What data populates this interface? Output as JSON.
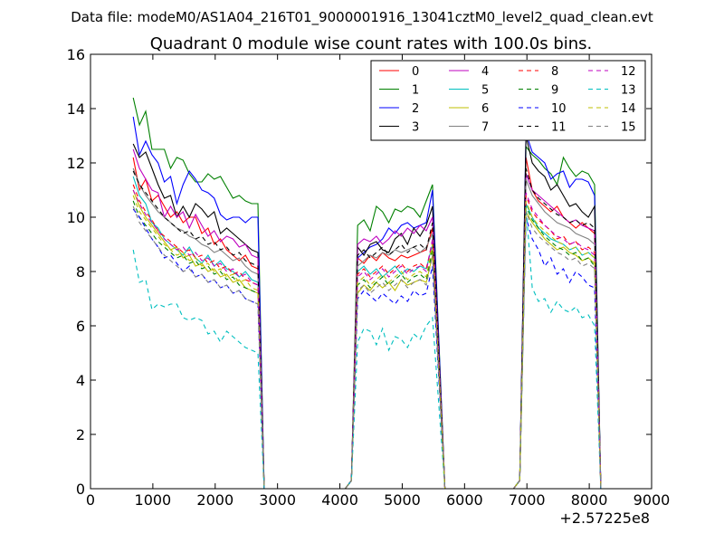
{
  "chart_data": {
    "type": "line",
    "suptitle": "Data file: modeM0/AS1A04_216T01_9000001916_13041cztM0_level2_quad_clean.evt",
    "title": "Quadrant 0 module wise count rates with 100.0s bins.",
    "xlabel": "",
    "ylabel": "",
    "xlim": [
      0,
      9000
    ],
    "ylim": [
      0,
      16
    ],
    "x_offset_label": "+2.57225e8",
    "xticks": [
      "0",
      "1000",
      "2000",
      "3000",
      "4000",
      "5000",
      "6000",
      "7000",
      "8000",
      "9000"
    ],
    "yticks": [
      "0",
      "2",
      "4",
      "6",
      "8",
      "10",
      "12",
      "14",
      "16"
    ],
    "legend_position": "upper-right",
    "legend_columns": 4,
    "segments": [
      {
        "start": 685,
        "step": 100,
        "count": 21,
        "rise_from": null,
        "fall_to": 2785
      },
      {
        "start": 4285,
        "step": 100,
        "count": 13,
        "rise_from": 4185,
        "fall_to": 5685
      },
      {
        "start": 6985,
        "step": 100,
        "count": 12,
        "rise_from": 6885,
        "fall_to": 8185
      }
    ],
    "gaps": [
      [
        2785,
        4085,
        0
      ],
      [
        5685,
        6785,
        0
      ]
    ],
    "series": [
      {
        "name": "0",
        "color": "#ff0000",
        "dash": false,
        "values": [
          [
            12.2,
            11.0,
            11.4,
            10.6,
            10.8,
            10.4,
            10.0,
            10.2,
            9.8,
            10.0,
            10.0,
            9.4,
            9.6,
            9.0,
            9.2,
            8.8,
            8.6,
            8.4,
            8.6,
            8.2,
            8.1
          ],
          [
            8.5,
            8.3,
            8.6,
            8.4,
            8.7,
            8.5,
            8.4,
            8.6,
            8.5,
            8.6,
            8.7,
            8.8,
            9.6
          ],
          [
            12.2,
            11.0,
            10.6,
            10.4,
            10.2,
            10.4,
            10.0,
            9.8,
            9.6,
            9.8,
            9.6,
            9.4
          ]
        ]
      },
      {
        "name": "1",
        "color": "#008000",
        "dash": false,
        "values": [
          [
            14.4,
            13.4,
            13.9,
            12.5,
            12.5,
            12.5,
            11.8,
            12.2,
            12.1,
            11.6,
            11.3,
            11.3,
            11.6,
            11.4,
            11.5,
            11.1,
            10.7,
            10.8,
            10.6,
            10.5,
            10.5
          ],
          [
            9.7,
            9.9,
            9.5,
            10.4,
            10.2,
            9.8,
            10.3,
            10.2,
            10.4,
            10.3,
            10.0,
            10.6,
            11.2
          ],
          [
            12.6,
            12.3,
            12.1,
            11.8,
            11.6,
            11.2,
            12.2,
            11.8,
            11.5,
            11.7,
            11.6,
            11.2
          ]
        ]
      },
      {
        "name": "2",
        "color": "#0000ff",
        "dash": false,
        "values": [
          [
            13.7,
            12.3,
            12.8,
            12.3,
            12.0,
            11.3,
            11.5,
            10.5,
            11.2,
            11.7,
            11.4,
            11.0,
            10.9,
            10.7,
            10.1,
            9.9,
            10.0,
            10.0,
            9.8,
            10.0,
            10.0
          ],
          [
            8.5,
            8.7,
            8.9,
            9.0,
            9.2,
            9.6,
            9.4,
            9.7,
            9.8,
            9.6,
            9.7,
            9.8,
            11.0
          ],
          [
            13.1,
            12.4,
            12.2,
            12.0,
            11.4,
            11.6,
            11.7,
            11.1,
            11.4,
            11.4,
            11.3,
            10.8
          ]
        ]
      },
      {
        "name": "3",
        "color": "#000000",
        "dash": false,
        "values": [
          [
            12.7,
            12.2,
            12.4,
            11.8,
            11.2,
            10.7,
            10.8,
            10.0,
            10.4,
            10.0,
            10.5,
            10.3,
            10.0,
            10.2,
            9.4,
            9.6,
            9.4,
            9.2,
            9.0,
            8.8,
            8.7
          ],
          [
            8.9,
            8.6,
            9.0,
            9.1,
            8.8,
            8.7,
            9.2,
            9.4,
            9.0,
            9.6,
            9.3,
            9.7,
            10.4
          ],
          [
            13.0,
            12.0,
            11.7,
            11.5,
            11.0,
            11.2,
            10.8,
            10.4,
            10.5,
            10.2,
            10.0,
            10.4
          ]
        ]
      },
      {
        "name": "4",
        "color": "#bf00bf",
        "dash": false,
        "values": [
          [
            12.5,
            11.8,
            11.4,
            11.0,
            10.9,
            10.0,
            10.4,
            10.0,
            10.2,
            9.6,
            10.1,
            9.7,
            9.3,
            9.5,
            9.1,
            9.3,
            9.2,
            8.9,
            9.0,
            8.6,
            8.5
          ],
          [
            9.0,
            9.2,
            9.1,
            9.3,
            9.0,
            9.2,
            9.5,
            9.3,
            9.6,
            9.4,
            9.7,
            9.5,
            10.0
          ],
          [
            11.6,
            11.0,
            10.8,
            10.6,
            10.4,
            10.2,
            10.0,
            9.8,
            9.9,
            9.7,
            9.6,
            9.5
          ]
        ]
      },
      {
        "name": "5",
        "color": "#00bfbf",
        "dash": false,
        "values": [
          [
            11.5,
            10.8,
            10.5,
            9.8,
            9.6,
            9.2,
            9.0,
            8.8,
            8.6,
            8.9,
            8.5,
            8.3,
            8.6,
            8.2,
            8.4,
            8.1,
            8.0,
            7.8,
            8.0,
            7.7,
            7.6
          ],
          [
            8.0,
            8.2,
            7.9,
            8.1,
            7.8,
            8.0,
            8.2,
            7.9,
            8.1,
            8.0,
            8.2,
            8.1,
            9.0
          ],
          [
            10.5,
            10.0,
            9.6,
            9.4,
            9.2,
            9.1,
            9.0,
            8.8,
            8.9,
            8.6,
            8.7,
            8.5
          ]
        ]
      },
      {
        "name": "6",
        "color": "#bfbf00",
        "dash": false,
        "values": [
          [
            11.0,
            10.4,
            10.0,
            9.7,
            9.4,
            9.1,
            8.8,
            8.9,
            8.5,
            8.6,
            8.2,
            8.3,
            8.0,
            8.1,
            7.8,
            7.9,
            7.6,
            7.7,
            7.4,
            7.3,
            7.2
          ],
          [
            7.2,
            7.5,
            7.3,
            7.6,
            7.4,
            7.6,
            7.3,
            7.7,
            7.5,
            7.6,
            7.7,
            7.6,
            8.6
          ],
          [
            10.2,
            9.8,
            9.5,
            9.2,
            9.0,
            8.8,
            8.9,
            8.7,
            8.6,
            8.4,
            8.5,
            8.3
          ]
        ]
      },
      {
        "name": "7",
        "color": "#808080",
        "dash": false,
        "values": [
          [
            11.8,
            11.2,
            10.8,
            10.5,
            10.2,
            10.0,
            9.8,
            9.6,
            9.5,
            9.3,
            9.2,
            9.0,
            8.9,
            8.7,
            8.8,
            8.6,
            8.4,
            8.5,
            8.2,
            8.0,
            7.9
          ],
          [
            8.2,
            8.4,
            8.6,
            8.5,
            8.7,
            8.6,
            8.8,
            8.7,
            8.8,
            8.9,
            8.7,
            8.9,
            9.4
          ],
          [
            11.4,
            10.8,
            10.5,
            10.2,
            10.0,
            9.8,
            9.7,
            9.6,
            9.4,
            9.3,
            9.2,
            9.0
          ]
        ]
      },
      {
        "name": "8",
        "color": "#ff0000",
        "dash": true,
        "values": [
          [
            11.2,
            10.6,
            10.2,
            9.9,
            9.5,
            9.3,
            9.1,
            8.9,
            8.7,
            8.8,
            8.5,
            8.6,
            8.3,
            8.4,
            8.1,
            8.2,
            7.9,
            8.0,
            7.7,
            7.6,
            7.5
          ],
          [
            7.9,
            8.1,
            7.8,
            8.0,
            8.2,
            7.9,
            8.1,
            8.3,
            8.0,
            8.2,
            8.3,
            8.1,
            9.1
          ],
          [
            10.8,
            10.2,
            9.9,
            9.7,
            9.5,
            9.2,
            9.3,
            9.0,
            9.1,
            8.8,
            8.9,
            8.7
          ]
        ]
      },
      {
        "name": "9",
        "color": "#008000",
        "dash": true,
        "values": [
          [
            10.6,
            10.0,
            9.7,
            9.4,
            9.1,
            8.9,
            8.7,
            8.5,
            8.6,
            8.3,
            8.4,
            8.1,
            8.2,
            7.9,
            8.0,
            7.7,
            7.8,
            7.5,
            7.4,
            7.3,
            7.2
          ],
          [
            7.5,
            7.7,
            7.4,
            7.6,
            7.8,
            7.5,
            7.7,
            7.9,
            7.6,
            7.8,
            7.9,
            7.7,
            8.8
          ],
          [
            10.4,
            9.9,
            9.6,
            9.3,
            9.1,
            8.9,
            8.8,
            8.6,
            8.7,
            8.4,
            8.5,
            8.2
          ]
        ]
      },
      {
        "name": "10",
        "color": "#0000ff",
        "dash": true,
        "values": [
          [
            10.3,
            10.0,
            9.6,
            9.2,
            8.9,
            8.5,
            8.6,
            8.3,
            8.0,
            8.2,
            7.8,
            7.9,
            7.6,
            7.7,
            7.4,
            7.5,
            7.2,
            7.3,
            7.0,
            6.9,
            6.8
          ],
          [
            7.0,
            7.3,
            7.1,
            6.9,
            7.2,
            7.0,
            6.8,
            7.1,
            6.9,
            7.3,
            7.1,
            7.2,
            8.2
          ],
          [
            10.0,
            9.2,
            8.8,
            8.2,
            8.5,
            7.9,
            8.1,
            7.6,
            8.0,
            7.8,
            7.5,
            7.4
          ]
        ]
      },
      {
        "name": "11",
        "color": "#000000",
        "dash": true,
        "values": [
          [
            11.7,
            11.2,
            10.9,
            10.6,
            10.3,
            10.0,
            9.8,
            9.6,
            9.4,
            9.5,
            9.2,
            9.3,
            9.0,
            9.1,
            8.8,
            8.9,
            8.6,
            8.7,
            8.4,
            8.3,
            8.2
          ],
          [
            8.6,
            8.8,
            8.5,
            8.7,
            8.9,
            8.6,
            8.8,
            9.0,
            8.7,
            8.9,
            9.0,
            8.8,
            9.8
          ],
          [
            11.8,
            11.0,
            10.7,
            10.5,
            10.3,
            10.1,
            10.0,
            9.8,
            9.9,
            9.7,
            9.8,
            9.6
          ]
        ]
      },
      {
        "name": "12",
        "color": "#bf00bf",
        "dash": true,
        "values": [
          [
            11.0,
            10.5,
            10.1,
            9.8,
            9.5,
            9.2,
            9.0,
            8.8,
            8.9,
            8.6,
            8.7,
            8.4,
            8.5,
            8.2,
            8.3,
            8.0,
            8.1,
            7.8,
            7.9,
            7.6,
            7.5
          ],
          [
            7.8,
            8.0,
            7.7,
            7.9,
            8.1,
            7.8,
            8.0,
            8.2,
            7.9,
            8.1,
            8.2,
            8.0,
            9.2
          ],
          [
            10.9,
            10.3,
            10.0,
            9.7,
            9.5,
            9.3,
            9.2,
            9.0,
            9.1,
            8.9,
            8.8,
            8.6
          ]
        ]
      },
      {
        "name": "13",
        "color": "#00bfbf",
        "dash": true,
        "values": [
          [
            8.8,
            7.6,
            7.7,
            6.6,
            6.8,
            6.7,
            6.8,
            6.8,
            6.3,
            6.2,
            6.3,
            6.2,
            5.7,
            5.8,
            5.4,
            5.8,
            5.6,
            5.4,
            5.2,
            5.1,
            5.0
          ],
          [
            5.4,
            5.9,
            5.8,
            5.3,
            5.9,
            5.1,
            5.6,
            5.5,
            5.2,
            5.7,
            5.5,
            6.0,
            6.3
          ],
          [
            10.4,
            7.4,
            6.9,
            7.0,
            6.5,
            6.9,
            6.6,
            6.5,
            6.7,
            6.3,
            6.4,
            6.0
          ]
        ]
      },
      {
        "name": "14",
        "color": "#bfbf00",
        "dash": true,
        "values": [
          [
            10.8,
            10.2,
            9.9,
            9.6,
            9.3,
            9.0,
            8.8,
            8.6,
            8.7,
            8.4,
            8.5,
            8.2,
            8.3,
            8.0,
            8.1,
            7.8,
            7.9,
            7.6,
            7.7,
            7.4,
            7.3
          ],
          [
            7.6,
            7.8,
            7.5,
            7.7,
            7.9,
            7.6,
            7.8,
            8.0,
            7.7,
            7.9,
            8.0,
            7.8,
            9.0
          ],
          [
            10.6,
            10.0,
            9.7,
            9.5,
            9.3,
            9.1,
            9.0,
            8.8,
            8.9,
            8.6,
            8.7,
            8.5
          ]
        ]
      },
      {
        "name": "15",
        "color": "#808080",
        "dash": true,
        "values": [
          [
            10.4,
            9.8,
            9.5,
            9.2,
            8.9,
            8.6,
            8.4,
            8.2,
            8.0,
            8.1,
            7.8,
            7.9,
            7.6,
            7.7,
            7.4,
            7.5,
            7.2,
            7.3,
            7.0,
            6.9,
            6.8
          ],
          [
            7.3,
            7.5,
            7.2,
            7.4,
            7.6,
            7.3,
            7.5,
            7.7,
            7.4,
            7.6,
            7.7,
            7.5,
            8.6
          ],
          [
            10.2,
            9.6,
            9.3,
            9.1,
            8.9,
            8.7,
            8.6,
            8.4,
            8.5,
            8.2,
            8.3,
            8.1
          ]
        ]
      }
    ]
  }
}
